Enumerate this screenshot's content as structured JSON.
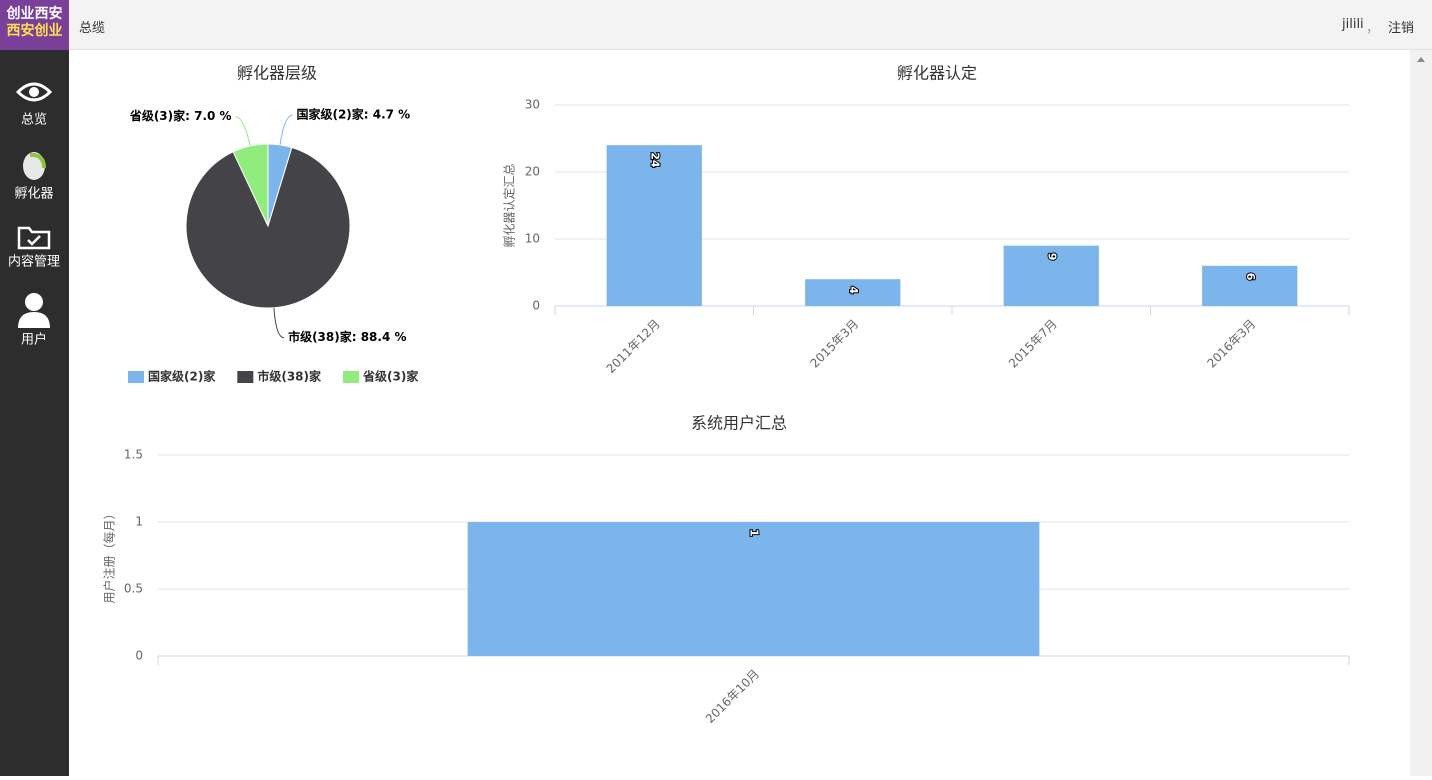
{
  "header": {
    "breadcrumb": "总缆",
    "user": "jilili",
    "separator": "，",
    "logout": "注销"
  },
  "logo": {
    "line1": "创业西安",
    "line2": "西安创业"
  },
  "sidebar": {
    "items": [
      "总览",
      "孵化器",
      "内容管理",
      "用户"
    ]
  },
  "chart_data": [
    {
      "type": "pie",
      "title": "孵化器层级",
      "categories": [
        "国家级(2)家",
        "市级(38)家",
        "省级(3)家"
      ],
      "values": [
        4.7,
        88.4,
        7.0
      ],
      "value_labels": [
        "国家级(2)家: 4.7 %",
        "市级(38)家: 88.4 %",
        "省级(3)家: 7.0 %"
      ],
      "colors": [
        "#7cb5ec",
        "#434348",
        "#90ed7d"
      ],
      "legend": "bottom"
    },
    {
      "type": "bar",
      "title": "孵化器认定",
      "y_label": "孵化器认定汇总",
      "categories": [
        "2011年12月",
        "2015年3月",
        "2015年7月",
        "2016年3月"
      ],
      "values": [
        24,
        4,
        9,
        6
      ],
      "color": "#7cb5ec",
      "ylim": [
        0,
        30
      ],
      "yticks": [
        0,
        10,
        20,
        30
      ],
      "grid": true
    },
    {
      "type": "bar",
      "title": "系统用户汇总",
      "y_label": "用户注册（每月）",
      "categories": [
        "2016年10月"
      ],
      "values": [
        1
      ],
      "color": "#7cb5ec",
      "ylim": [
        0,
        1.5
      ],
      "yticks": [
        0,
        0.5,
        1,
        1.5
      ],
      "grid": true
    }
  ]
}
